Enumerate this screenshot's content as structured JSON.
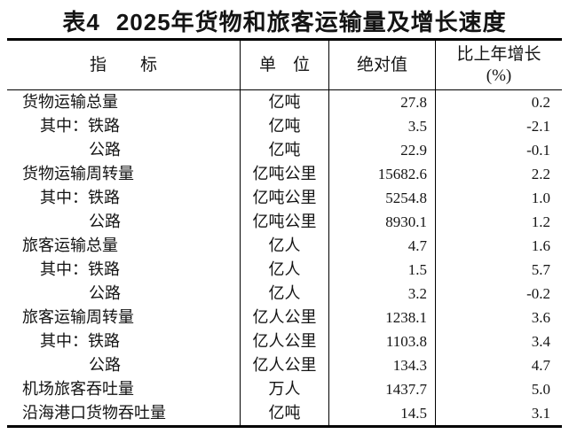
{
  "page": {
    "background": "#ffffff",
    "text_color": "#141414",
    "line_color": "#000000"
  },
  "title": {
    "label": "表4",
    "text": "2025年货物和旅客运输量及增长速度"
  },
  "table": {
    "headers": {
      "indicator": "指　　标",
      "unit": "单　位",
      "value": "绝对值",
      "growth_line1": "比上年增长",
      "growth_line2": "(%)"
    },
    "rows": [
      {
        "indicator": "货物运输总量",
        "unit": "亿吨",
        "value": "27.8",
        "growth": "0.2",
        "indent": 0
      },
      {
        "indicator": "其中：铁路",
        "unit": "亿吨",
        "value": "3.5",
        "growth": "-2.1",
        "indent": 1
      },
      {
        "indicator": "公路",
        "unit": "亿吨",
        "value": "22.9",
        "growth": "-0.1",
        "indent": 2
      },
      {
        "indicator": "货物运输周转量",
        "unit": "亿吨公里",
        "value": "15682.6",
        "growth": "2.2",
        "indent": 0
      },
      {
        "indicator": "其中：铁路",
        "unit": "亿吨公里",
        "value": "5254.8",
        "growth": "1.0",
        "indent": 1
      },
      {
        "indicator": "公路",
        "unit": "亿吨公里",
        "value": "8930.1",
        "growth": "1.2",
        "indent": 2
      },
      {
        "indicator": "旅客运输总量",
        "unit": "亿人",
        "value": "4.7",
        "growth": "1.6",
        "indent": 0
      },
      {
        "indicator": "其中：铁路",
        "unit": "亿人",
        "value": "1.5",
        "growth": "5.7",
        "indent": 1
      },
      {
        "indicator": "公路",
        "unit": "亿人",
        "value": "3.2",
        "growth": "-0.2",
        "indent": 2
      },
      {
        "indicator": "旅客运输周转量",
        "unit": "亿人公里",
        "value": "1238.1",
        "growth": "3.6",
        "indent": 0
      },
      {
        "indicator": "其中：铁路",
        "unit": "亿人公里",
        "value": "1103.8",
        "growth": "3.4",
        "indent": 1
      },
      {
        "indicator": "公路",
        "unit": "亿人公里",
        "value": "134.3",
        "growth": "4.7",
        "indent": 2
      },
      {
        "indicator": "机场旅客吞吐量",
        "unit": "万人",
        "value": "1437.7",
        "growth": "5.0",
        "indent": 0
      },
      {
        "indicator": "沿海港口货物吞吐量",
        "unit": "亿吨",
        "value": "14.5",
        "growth": "3.1",
        "indent": 0
      }
    ]
  }
}
